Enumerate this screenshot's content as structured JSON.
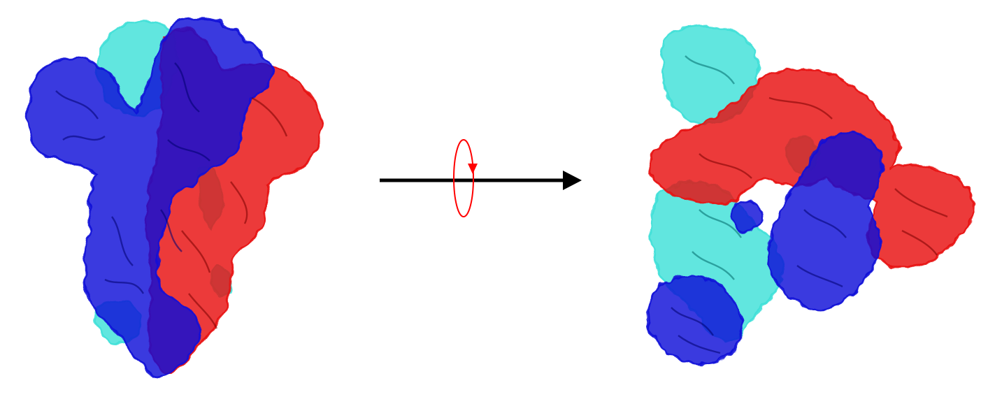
{
  "figure": {
    "colors": {
      "chain_a": "#1010d8",
      "chain_b": "#e81010",
      "chain_c": "#3ee0d8",
      "arrow": "#000000",
      "rotation_marker": "#ff0000",
      "background": "#ffffff"
    },
    "panels": [
      {
        "view": "side",
        "chains": [
          "chain_a",
          "chain_b",
          "chain_c"
        ]
      },
      {
        "view": "top",
        "chains": [
          "chain_a",
          "chain_b",
          "chain_c"
        ]
      }
    ],
    "transition": {
      "arrow_icon": "right-arrow-icon",
      "rotation_icon": "rotation-ellipse-icon",
      "rotation_axis": "horizontal"
    }
  }
}
